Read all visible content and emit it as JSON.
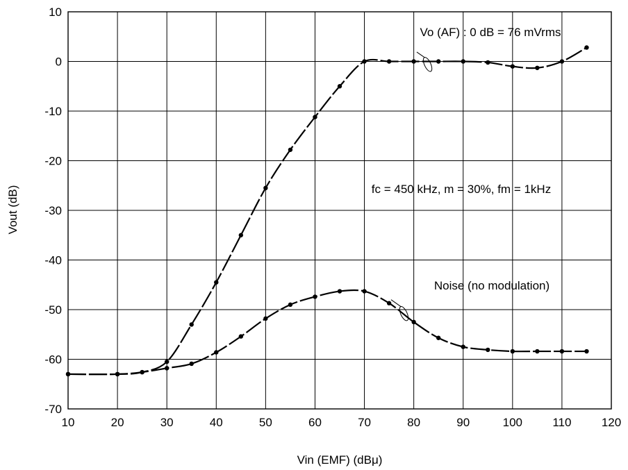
{
  "chart_data": {
    "type": "line",
    "title": "",
    "xlabel": "Vin (EMF)  (dBμ)",
    "ylabel": "Vout  (dB)",
    "xlim": [
      10,
      120
    ],
    "ylim": [
      -70,
      10
    ],
    "xticks": [
      10,
      20,
      30,
      40,
      50,
      60,
      70,
      80,
      90,
      100,
      110,
      120
    ],
    "yticks": [
      -70,
      -60,
      -50,
      -40,
      -30,
      -20,
      -10,
      0,
      10
    ],
    "grid": true,
    "annotations": [
      {
        "text": "Vo (AF) : 0 dB = 76 mVrms"
      },
      {
        "text": "fc = 450 kHz, m = 30%, fm = 1kHz"
      },
      {
        "text": "Noise (no modulation)"
      }
    ],
    "series": [
      {
        "label": "Vo (AF)",
        "x": [
          10,
          20,
          25,
          30,
          35,
          40,
          45,
          50,
          55,
          60,
          65,
          70,
          75,
          80,
          85,
          90,
          95,
          100,
          105,
          110,
          115
        ],
        "y": [
          -63,
          -63,
          -62.6,
          -60.5,
          -53,
          -44.5,
          -35,
          -25.5,
          -17.8,
          -11.2,
          -5,
          0,
          0,
          0,
          0,
          0,
          -0.2,
          -1,
          -1.3,
          0,
          2.8
        ]
      },
      {
        "label": "Noise",
        "x": [
          10,
          20,
          25,
          30,
          35,
          40,
          45,
          50,
          55,
          60,
          65,
          70,
          75,
          80,
          85,
          90,
          95,
          100,
          105,
          110,
          115
        ],
        "y": [
          -63,
          -63,
          -62.6,
          -61.8,
          -60.9,
          -58.6,
          -55.4,
          -51.8,
          -49,
          -47.4,
          -46.3,
          -46.3,
          -48.7,
          -52.5,
          -55.7,
          -57.5,
          -58.1,
          -58.4,
          -58.4,
          -58.4,
          -58.4
        ]
      }
    ]
  }
}
